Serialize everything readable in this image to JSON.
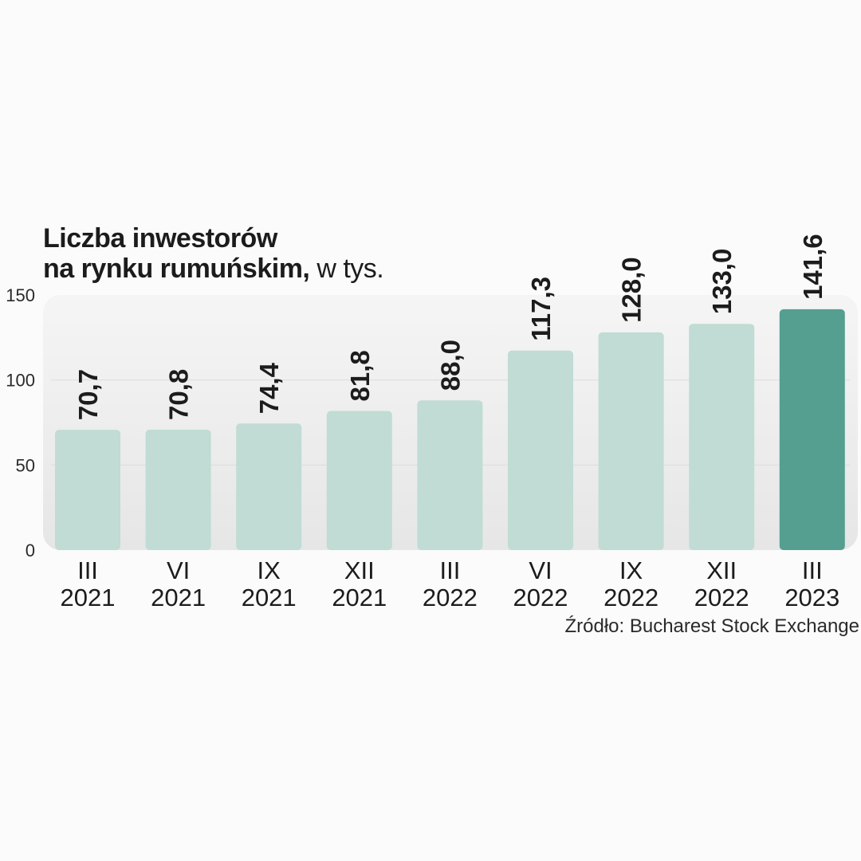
{
  "title_line1": "Liczba inwestorów",
  "title_line2": "na rynku rumuńskim,",
  "title_unit": "w tys.",
  "source": "Źródło: Bucharest Stock Exchange",
  "colors": {
    "bar": "#c0dcd4",
    "bar_highlight": "#559f90",
    "plot_background": "#ececec",
    "gridline": "#dcdcdc"
  },
  "chart_data": {
    "type": "bar",
    "title": "Liczba inwestorów na rynku rumuńskim, w tys.",
    "categories": [
      [
        "III",
        "2021"
      ],
      [
        "VI",
        "2021"
      ],
      [
        "IX",
        "2021"
      ],
      [
        "XII",
        "2021"
      ],
      [
        "III",
        "2022"
      ],
      [
        "VI",
        "2022"
      ],
      [
        "IX",
        "2022"
      ],
      [
        "XII",
        "2022"
      ],
      [
        "III",
        "2023"
      ]
    ],
    "values": [
      70.7,
      70.8,
      74.4,
      81.8,
      88.0,
      117.3,
      128.0,
      133.0,
      141.6
    ],
    "value_labels": [
      "70,7",
      "70,8",
      "74,4",
      "81,8",
      "88,0",
      "117,3",
      "128,0",
      "133,0",
      "141,6"
    ],
    "highlight_index": 8,
    "ylim": [
      0,
      150
    ],
    "yticks": [
      0,
      50,
      100,
      150
    ],
    "grid": true,
    "xlabel": "",
    "ylabel": ""
  }
}
